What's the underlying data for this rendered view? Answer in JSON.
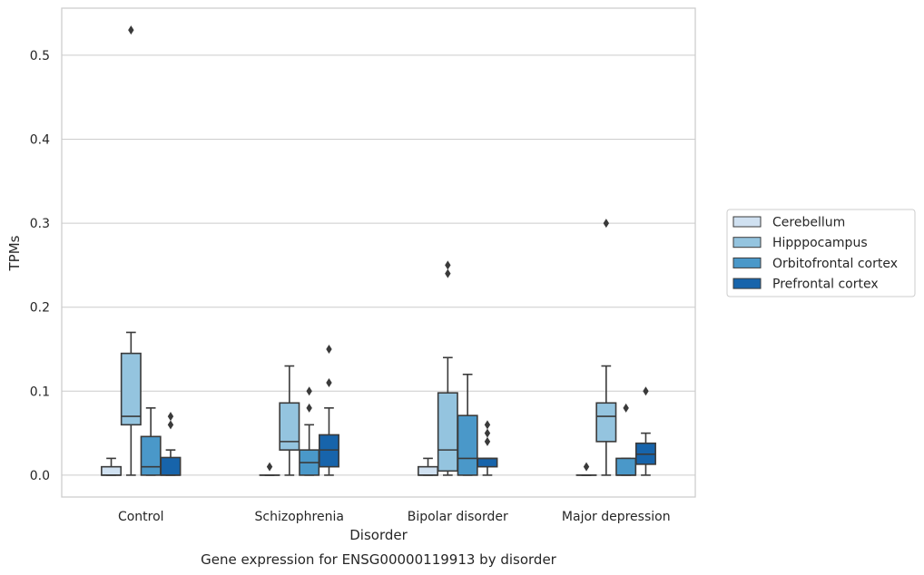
{
  "chart_data": {
    "type": "box",
    "title": "Gene expression for ENSG00000119913 by disorder",
    "xlabel": "Disorder",
    "ylabel": "TPMs",
    "ylim": [
      -0.026,
      0.556
    ],
    "yticks": [
      0.0,
      0.1,
      0.2,
      0.3,
      0.4,
      0.5
    ],
    "ytick_labels": [
      "0.0",
      "0.1",
      "0.2",
      "0.3",
      "0.4",
      "0.5"
    ],
    "grid": "horizontal",
    "legend_position": "right",
    "categories": [
      "Control",
      "Schizophrenia",
      "Bipolar disorder",
      "Major depression"
    ],
    "series": [
      {
        "name": "Cerebellum",
        "color": "#d0e1f1",
        "boxes": [
          {
            "whislo": 0.0,
            "q1": 0.0,
            "med": 0.0,
            "q3": 0.01,
            "whishi": 0.02,
            "fliers": []
          },
          {
            "whislo": 0.0,
            "q1": 0.0,
            "med": 0.0,
            "q3": 0.0,
            "whishi": 0.0,
            "fliers": [
              0.01
            ]
          },
          {
            "whislo": 0.0,
            "q1": 0.0,
            "med": 0.0,
            "q3": 0.01,
            "whishi": 0.02,
            "fliers": []
          },
          {
            "whislo": 0.0,
            "q1": 0.0,
            "med": 0.0,
            "q3": 0.0,
            "whishi": 0.0,
            "fliers": [
              0.01
            ]
          }
        ]
      },
      {
        "name": "Hipppocampus",
        "color": "#94c4df",
        "boxes": [
          {
            "whislo": 0.0,
            "q1": 0.06,
            "med": 0.07,
            "q3": 0.145,
            "whishi": 0.17,
            "fliers": [
              0.53
            ]
          },
          {
            "whislo": 0.0,
            "q1": 0.03,
            "med": 0.04,
            "q3": 0.086,
            "whishi": 0.13,
            "fliers": []
          },
          {
            "whislo": 0.0,
            "q1": 0.005,
            "med": 0.03,
            "q3": 0.098,
            "whishi": 0.14,
            "fliers": [
              0.24,
              0.25
            ]
          },
          {
            "whislo": 0.0,
            "q1": 0.04,
            "med": 0.07,
            "q3": 0.086,
            "whishi": 0.13,
            "fliers": [
              0.3
            ]
          }
        ]
      },
      {
        "name": "Orbitofrontal cortex",
        "color": "#4a98c9",
        "boxes": [
          {
            "whislo": 0.0,
            "q1": 0.0,
            "med": 0.01,
            "q3": 0.046,
            "whishi": 0.08,
            "fliers": []
          },
          {
            "whislo": 0.0,
            "q1": 0.0,
            "med": 0.015,
            "q3": 0.03,
            "whishi": 0.06,
            "fliers": [
              0.08,
              0.1
            ]
          },
          {
            "whislo": 0.0,
            "q1": 0.0,
            "med": 0.02,
            "q3": 0.071,
            "whishi": 0.12,
            "fliers": []
          },
          {
            "whislo": 0.0,
            "q1": 0.0,
            "med": 0.0,
            "q3": 0.02,
            "whishi": 0.02,
            "fliers": [
              0.08
            ]
          }
        ]
      },
      {
        "name": "Prefrontal cortex",
        "color": "#1764ab",
        "boxes": [
          {
            "whislo": 0.0,
            "q1": 0.0,
            "med": 0.0,
            "q3": 0.021,
            "whishi": 0.03,
            "fliers": [
              0.06,
              0.07
            ]
          },
          {
            "whislo": 0.0,
            "q1": 0.01,
            "med": 0.03,
            "q3": 0.048,
            "whishi": 0.08,
            "fliers": [
              0.11,
              0.15
            ]
          },
          {
            "whislo": 0.0,
            "q1": 0.01,
            "med": 0.02,
            "q3": 0.02,
            "whishi": 0.02,
            "fliers": [
              0.04,
              0.05,
              0.06
            ]
          },
          {
            "whislo": 0.0,
            "q1": 0.013,
            "med": 0.025,
            "q3": 0.038,
            "whishi": 0.05,
            "fliers": [
              0.1
            ]
          }
        ]
      }
    ]
  }
}
